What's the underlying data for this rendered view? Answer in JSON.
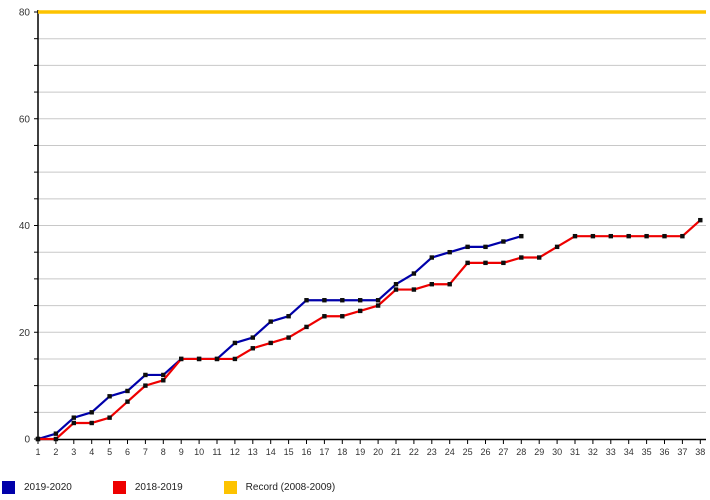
{
  "chart_data": {
    "type": "line",
    "title": "",
    "xlabel": "",
    "ylabel": "",
    "x": [
      1,
      2,
      3,
      4,
      5,
      6,
      7,
      8,
      9,
      10,
      11,
      12,
      13,
      14,
      15,
      16,
      17,
      18,
      19,
      20,
      21,
      22,
      23,
      24,
      25,
      26,
      27,
      28,
      29,
      30,
      31,
      32,
      33,
      34,
      35,
      36,
      37,
      38
    ],
    "x_tick_labels": [
      "1",
      "2",
      "3",
      "4",
      "5",
      "6",
      "7",
      "8",
      "9",
      "10",
      "11",
      "12",
      "13",
      "14",
      "15",
      "16",
      "17",
      "18",
      "19",
      "20",
      "21",
      "22",
      "23",
      "24",
      "25",
      "26",
      "27",
      "28",
      "29",
      "30",
      "31",
      "32",
      "33",
      "34",
      "35",
      "36",
      "37",
      "38"
    ],
    "series": [
      {
        "name": "2019-2020",
        "color": "#0000AA",
        "marker": "square",
        "marker_color": "#0d0d0d",
        "values": [
          0,
          1,
          4,
          5,
          8,
          9,
          12,
          12,
          15,
          15,
          15,
          18,
          19,
          22,
          23,
          26,
          26,
          26,
          26,
          26,
          29,
          31,
          34,
          35,
          36,
          36,
          37,
          38
        ]
      },
      {
        "name": "2018-2019",
        "color": "#EE0000",
        "marker": "square",
        "marker_color": "#0d0d0d",
        "values": [
          0,
          0,
          3,
          3,
          4,
          7,
          10,
          11,
          15,
          15,
          15,
          15,
          17,
          18,
          19,
          21,
          23,
          23,
          24,
          25,
          28,
          28,
          29,
          29,
          33,
          33,
          33,
          34,
          34,
          36,
          38,
          38,
          38,
          38,
          38,
          38,
          38,
          41
        ]
      },
      {
        "name": "Record (2008-2009)",
        "color": "#FDC300",
        "marker": "none",
        "constant": 80
      }
    ],
    "ylim": [
      0,
      80
    ],
    "y_major_tick_labels": [
      "0",
      "20",
      "40",
      "60",
      "80"
    ],
    "y_major_ticks": [
      0,
      20,
      40,
      60,
      80
    ],
    "grid": true,
    "grid_step": 5,
    "grid_color": "#c8c8c8",
    "axis_color": "#000000",
    "tick_label_color": "#333333",
    "legend_position": "bottom-left"
  }
}
